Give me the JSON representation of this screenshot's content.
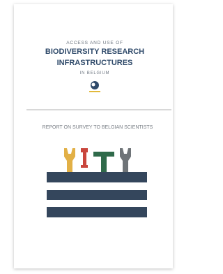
{
  "cover": {
    "kicker": "ACCESS AND USE OF",
    "title": [
      "BIODIVERSITY RESEARCH",
      "INFRASTRUCTURES"
    ],
    "location": "IN BELGIUM",
    "subtitle": "REPORT ON SURVEY TO BELGIAN SCIENTISTS"
  }
}
